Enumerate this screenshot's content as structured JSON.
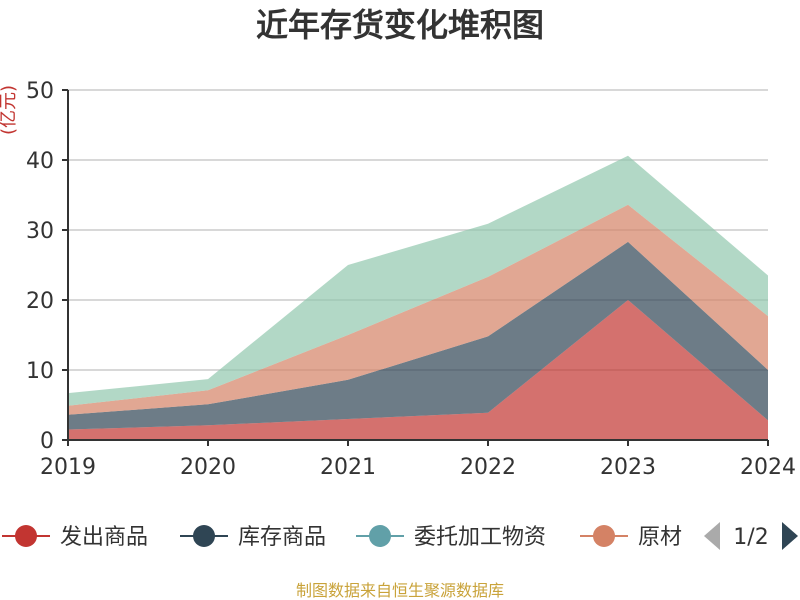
{
  "chart_data": {
    "type": "area",
    "stacked": true,
    "title": "近年存货变化堆积图",
    "ylabel": "(亿元)",
    "xlabel": "",
    "categories": [
      "2019",
      "2020",
      "2021",
      "2022",
      "2023",
      "2024"
    ],
    "ylim": [
      0,
      50
    ],
    "yticks": [
      0,
      10,
      20,
      30,
      40,
      50
    ],
    "grid": true,
    "series": [
      {
        "name": "发出商品",
        "color": "#c23531",
        "values": [
          1.5,
          2.1,
          3.0,
          3.9,
          20.0,
          2.8
        ]
      },
      {
        "name": "库存商品",
        "color": "#2f4554",
        "values": [
          2.1,
          3.0,
          5.6,
          10.9,
          8.3,
          7.2
        ]
      },
      {
        "name": "委托加工物资",
        "color": "#61a0a8",
        "values": [
          0.0,
          0.0,
          0.0,
          0.0,
          0.0,
          0.0
        ]
      },
      {
        "name": "原材料",
        "color": "#d48265",
        "values": [
          1.3,
          2.0,
          6.4,
          8.5,
          5.3,
          7.7
        ]
      },
      {
        "name": "",
        "color": "#91c7ae",
        "values": [
          1.8,
          1.6,
          10.0,
          7.6,
          7.0,
          5.8
        ]
      }
    ],
    "legend": {
      "visible_items": [
        "发出商品",
        "库存商品",
        "委托加工物资",
        "原材"
      ],
      "page": "1/2"
    },
    "source": "制图数据来自恒生聚源数据库"
  }
}
